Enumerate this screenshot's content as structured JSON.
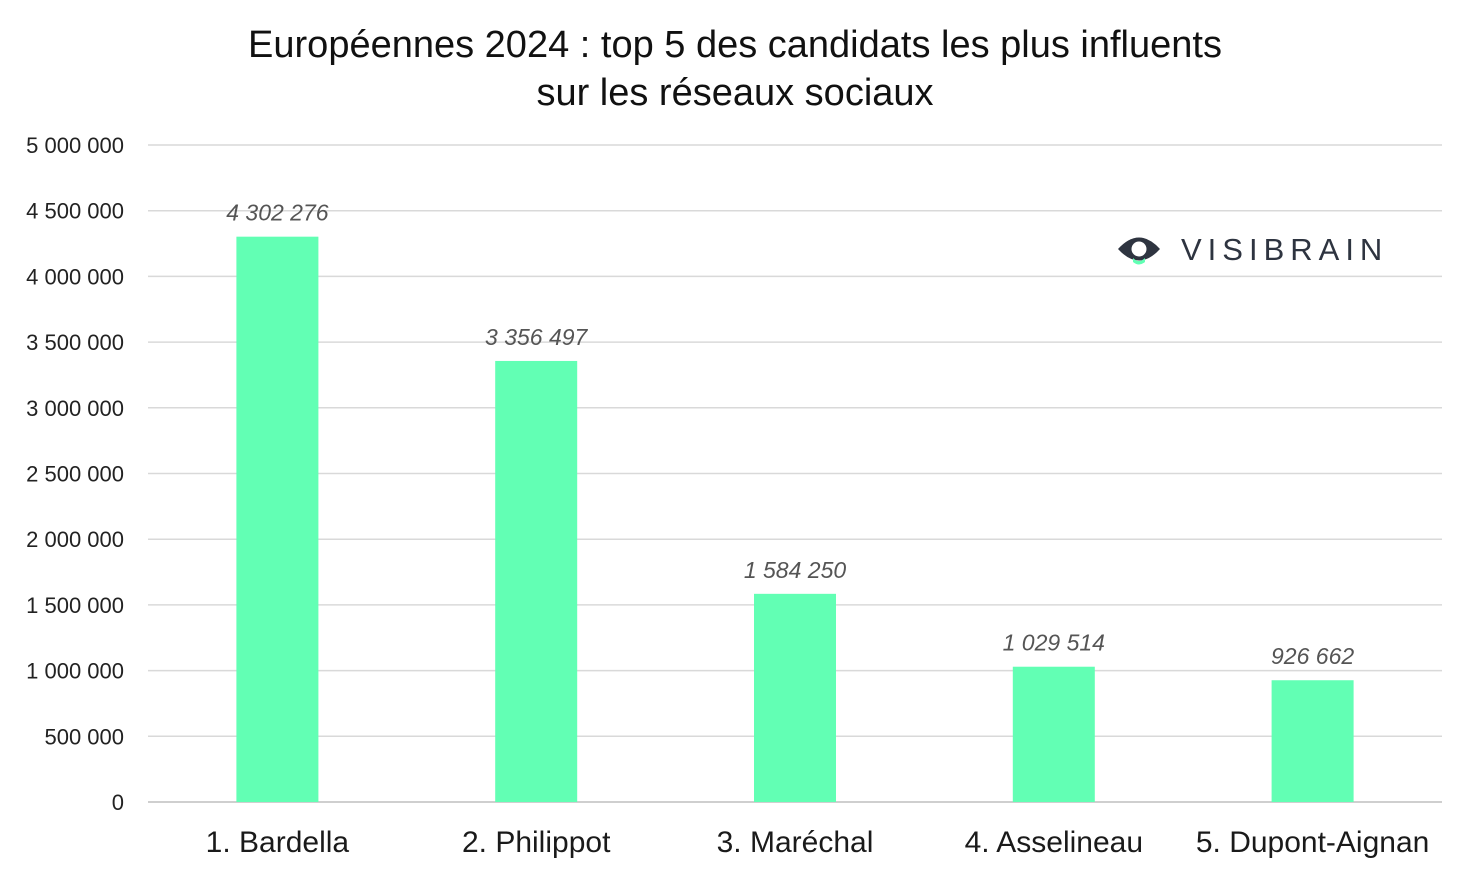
{
  "chart_data": {
    "type": "bar",
    "title": [
      "Européennes 2024 : top 5 des candidats les plus influents",
      "sur les réseaux sociaux"
    ],
    "categories": [
      "1. Bardella",
      "2. Philippot",
      "3. Maréchal",
      "4. Asselineau",
      "5. Dupont-Aignan"
    ],
    "values": [
      4302276,
      3356497,
      1584250,
      1029514,
      926662
    ],
    "value_labels": [
      "4 302 276",
      "3 356 497",
      "1 584 250",
      "1 029 514",
      "926 662"
    ],
    "yticks": [
      0,
      500000,
      1000000,
      1500000,
      2000000,
      2500000,
      3000000,
      3500000,
      4000000,
      4500000,
      5000000
    ],
    "ytick_labels": [
      "0",
      "500 000",
      "1 000 000",
      "1 500 000",
      "2 000 000",
      "2 500 000",
      "3 000 000",
      "3 500 000",
      "4 000 000",
      "4 500 000",
      "5 000 000"
    ],
    "ylim": [
      0,
      5000000
    ],
    "xlabel": "",
    "ylabel": "",
    "grid": true,
    "bar_color": "#62ffb4"
  },
  "logo": {
    "text": "VISIBRAIN",
    "icon": "eye-icon",
    "icon_color": "#2e3440",
    "accent_color": "#62ffb4"
  }
}
